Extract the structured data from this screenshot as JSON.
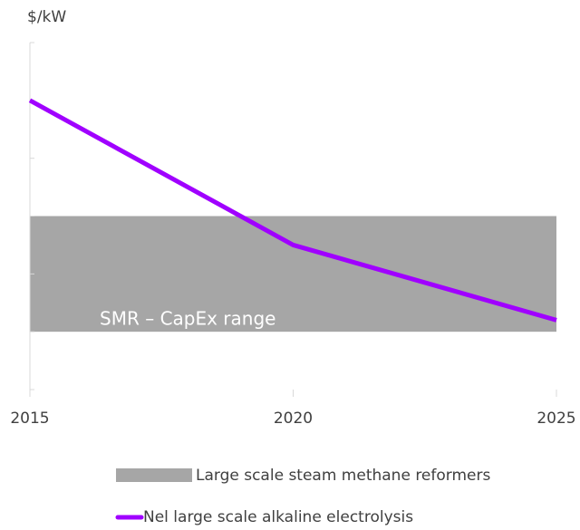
{
  "chart_data": {
    "type": "line",
    "y_label": "$/kW",
    "x": [
      2015,
      2020,
      2025
    ],
    "xlim": [
      2015,
      2025
    ],
    "xticks": [
      2015,
      2020,
      2025
    ],
    "ylim": [
      0,
      6
    ],
    "yticks": [
      0,
      1,
      2,
      3,
      4,
      5,
      6
    ],
    "band": {
      "name": "Large scale steam methane reformers",
      "color": "#a6a6a6",
      "range": [
        1,
        3
      ]
    },
    "annotation": "SMR – CapEx range",
    "series": [
      {
        "name": "Nel large scale alkaline electrolysis",
        "color": "#a000ff",
        "values": [
          5,
          2.5,
          1.2
        ]
      }
    ]
  }
}
